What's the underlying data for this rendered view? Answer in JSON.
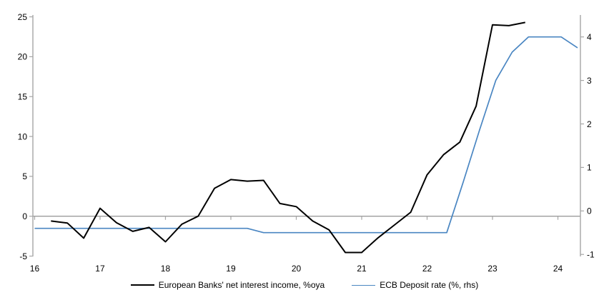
{
  "chart_data": {
    "type": "line",
    "title": "",
    "xlabel": "",
    "ylabel_left": "",
    "ylabel_right": "",
    "grid": "zero-line-only",
    "legend_position": "bottom-center",
    "x_axis": {
      "ticks": [
        16,
        17,
        18,
        19,
        20,
        21,
        22,
        23,
        24
      ],
      "tick_labels": [
        "16",
        "17",
        "18",
        "19",
        "20",
        "21",
        "22",
        "23",
        "24"
      ],
      "range": [
        15.973,
        24.344
      ]
    },
    "left_axis": {
      "ticks": [
        25,
        20,
        15,
        10,
        5,
        0,
        -5
      ],
      "tick_labels": [
        "25",
        "20",
        "15",
        "10",
        "5",
        "0",
        "-5"
      ],
      "range": [
        -5.04,
        25.23
      ]
    },
    "right_axis": {
      "ticks": [
        4,
        3,
        2,
        1,
        0,
        -1
      ],
      "tick_labels": [
        "4",
        "3",
        "2",
        "1",
        "0",
        "-1"
      ],
      "range": [
        -1.046,
        4.504
      ]
    },
    "series": [
      {
        "name": "European Banks' net interest income, %oya",
        "axis": "left",
        "color": "#000000",
        "stroke_width": 2,
        "points": [
          [
            16.25,
            -0.6
          ],
          [
            16.5,
            -0.85
          ],
          [
            16.75,
            -2.75
          ],
          [
            17.0,
            1.0
          ],
          [
            17.25,
            -0.8
          ],
          [
            17.5,
            -1.9
          ],
          [
            17.75,
            -1.4
          ],
          [
            18.0,
            -3.2
          ],
          [
            18.25,
            -1.0
          ],
          [
            18.5,
            0.0
          ],
          [
            18.75,
            3.5
          ],
          [
            19.0,
            4.6
          ],
          [
            19.25,
            4.4
          ],
          [
            19.5,
            4.5
          ],
          [
            19.75,
            1.6
          ],
          [
            20.0,
            1.2
          ],
          [
            20.25,
            -0.6
          ],
          [
            20.5,
            -1.7
          ],
          [
            20.75,
            -4.55
          ],
          [
            21.0,
            -4.55
          ],
          [
            21.25,
            -2.7
          ],
          [
            21.5,
            -1.1
          ],
          [
            21.75,
            0.5
          ],
          [
            22.0,
            5.2
          ],
          [
            22.25,
            7.7
          ],
          [
            22.5,
            9.3
          ],
          [
            22.75,
            13.8
          ],
          [
            23.0,
            24.0
          ],
          [
            23.25,
            23.9
          ],
          [
            23.5,
            24.3
          ]
        ]
      },
      {
        "name": "ECB Deposit rate (%, rhs)",
        "axis": "right",
        "color": "#4a86c2",
        "stroke_width": 1.7,
        "points": [
          [
            16.0,
            -0.4
          ],
          [
            19.25,
            -0.4
          ],
          [
            19.5,
            -0.5
          ],
          [
            22.3,
            -0.5
          ],
          [
            22.55,
            0.65
          ],
          [
            22.8,
            1.85
          ],
          [
            23.05,
            3.0
          ],
          [
            23.3,
            3.65
          ],
          [
            23.55,
            4.0
          ],
          [
            24.05,
            4.0
          ],
          [
            24.3,
            3.75
          ]
        ]
      }
    ],
    "axis_color": "#a6a6a6",
    "zero_line_color": "#9c9c9c",
    "tick_label_color": "#000000"
  },
  "legend": {
    "items": [
      {
        "label": "European Banks' net interest income, %oya",
        "color": "#000000",
        "thickness": 2
      },
      {
        "label": "ECB Deposit rate (%, rhs)",
        "color": "#4a86c2",
        "thickness": 1.7
      }
    ]
  }
}
